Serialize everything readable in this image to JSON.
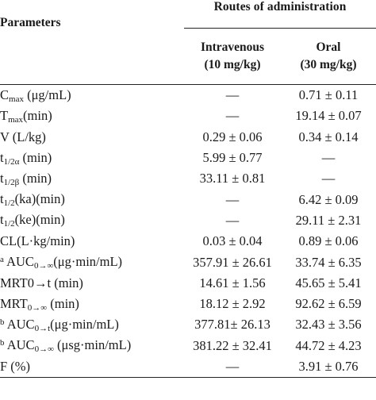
{
  "header": {
    "parameters": "Parameters",
    "routes": "Routes of administration",
    "iv_line1": "Intravenous",
    "iv_line2": "(10 mg/kg)",
    "oral_line1": "Oral",
    "oral_line2": "(30 mg/kg)"
  },
  "rows": [
    {
      "pre": "",
      "main": "C",
      "sub": "max",
      "post": " (μg/mL)",
      "iv": "—",
      "oral": "0.71 ± 0.11"
    },
    {
      "pre": "",
      "main": "T",
      "sub": "max",
      "post": "(min)",
      "iv": "—",
      "oral": "19.14 ± 0.07"
    },
    {
      "pre": "",
      "main": "V (L/kg)",
      "sub": "",
      "post": "",
      "iv": "0.29 ± 0.06",
      "oral": "0.34 ± 0.14"
    },
    {
      "pre": "",
      "main": "t",
      "sub": "1/2α",
      "post": " (min)",
      "iv": "5.99 ± 0.77",
      "oral": "—"
    },
    {
      "pre": "",
      "main": "t",
      "sub": "1/2β",
      "post": " (min)",
      "iv": "33.11 ± 0.81",
      "oral": "—"
    },
    {
      "pre": "",
      "main": "t",
      "sub": "1/2",
      "post": "(ka)(min)",
      "iv": "—",
      "oral": "6.42 ± 0.09"
    },
    {
      "pre": "",
      "main": "t",
      "sub": "1/2",
      "post": "(ke)(min)",
      "iv": "—",
      "oral": "29.11 ± 2.31"
    },
    {
      "pre": "",
      "main": "CL(L·kg/min)",
      "sub": "",
      "post": "",
      "iv": "0.03 ± 0.04",
      "oral": "0.89 ± 0.06"
    },
    {
      "pre": "a",
      "main": " AUC",
      "sub": "0→∞",
      "post": "(μg·min/mL)",
      "iv": "357.91 ± 26.61",
      "oral": "33.74 ± 6.35"
    },
    {
      "pre": "",
      "main": "MRT0→t (min)",
      "sub": "",
      "post": "",
      "iv": "14.61 ± 1.56",
      "oral": "45.65 ± 5.41"
    },
    {
      "pre": "",
      "main": "MRT",
      "sub": "0→∞",
      "post": " (min)",
      "iv": "18.12 ± 2.92",
      "oral": "92.62 ± 6.59"
    },
    {
      "pre": "b",
      "main": " AUC",
      "sub": "0→t",
      "post": "(μg·min/mL)",
      "iv": "377.81± 26.13",
      "oral": "32.43 ± 3.56"
    },
    {
      "pre": "b",
      "main": " AUC",
      "sub": "0→∞",
      "post": " (μsg·min/mL)",
      "iv": "381.22 ± 32.41",
      "oral": "44.72 ± 4.23"
    },
    {
      "pre": "",
      "main": "F (%)",
      "sub": "",
      "post": "",
      "iv": "—",
      "oral": "3.91 ± 0.76"
    }
  ]
}
